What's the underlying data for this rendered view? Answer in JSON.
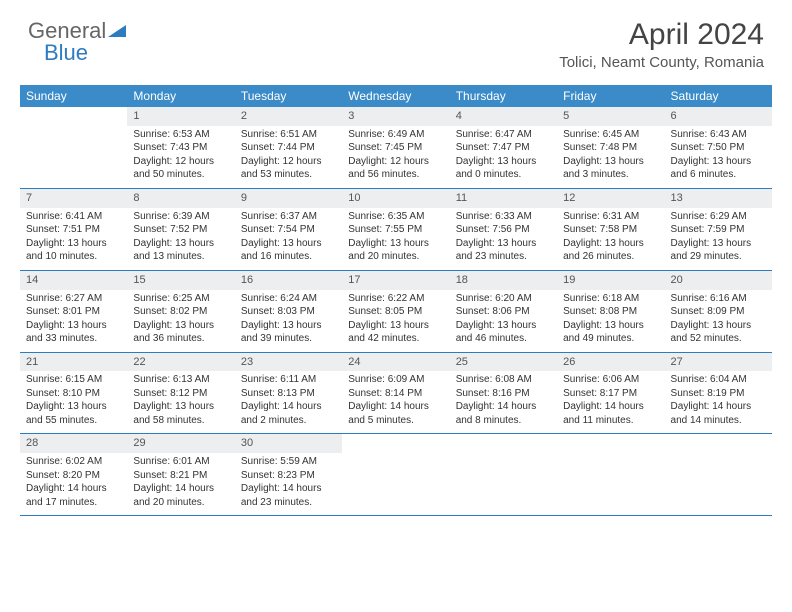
{
  "brand": {
    "part1": "General",
    "part2": "Blue"
  },
  "title": "April 2024",
  "location": "Tolici, Neamt County, Romania",
  "weekday_headers": [
    "Sunday",
    "Monday",
    "Tuesday",
    "Wednesday",
    "Thursday",
    "Friday",
    "Saturday"
  ],
  "header_bg": "#3b8bc9",
  "daynum_bg": "#eceeef",
  "rule_color": "#2e7cc0",
  "weeks": [
    {
      "nums": [
        "",
        "1",
        "2",
        "3",
        "4",
        "5",
        "6"
      ],
      "cells": [
        {
          "sr": "",
          "ss": "",
          "dl1": "",
          "dl2": ""
        },
        {
          "sr": "Sunrise: 6:53 AM",
          "ss": "Sunset: 7:43 PM",
          "dl1": "Daylight: 12 hours",
          "dl2": "and 50 minutes."
        },
        {
          "sr": "Sunrise: 6:51 AM",
          "ss": "Sunset: 7:44 PM",
          "dl1": "Daylight: 12 hours",
          "dl2": "and 53 minutes."
        },
        {
          "sr": "Sunrise: 6:49 AM",
          "ss": "Sunset: 7:45 PM",
          "dl1": "Daylight: 12 hours",
          "dl2": "and 56 minutes."
        },
        {
          "sr": "Sunrise: 6:47 AM",
          "ss": "Sunset: 7:47 PM",
          "dl1": "Daylight: 13 hours",
          "dl2": "and 0 minutes."
        },
        {
          "sr": "Sunrise: 6:45 AM",
          "ss": "Sunset: 7:48 PM",
          "dl1": "Daylight: 13 hours",
          "dl2": "and 3 minutes."
        },
        {
          "sr": "Sunrise: 6:43 AM",
          "ss": "Sunset: 7:50 PM",
          "dl1": "Daylight: 13 hours",
          "dl2": "and 6 minutes."
        }
      ]
    },
    {
      "nums": [
        "7",
        "8",
        "9",
        "10",
        "11",
        "12",
        "13"
      ],
      "cells": [
        {
          "sr": "Sunrise: 6:41 AM",
          "ss": "Sunset: 7:51 PM",
          "dl1": "Daylight: 13 hours",
          "dl2": "and 10 minutes."
        },
        {
          "sr": "Sunrise: 6:39 AM",
          "ss": "Sunset: 7:52 PM",
          "dl1": "Daylight: 13 hours",
          "dl2": "and 13 minutes."
        },
        {
          "sr": "Sunrise: 6:37 AM",
          "ss": "Sunset: 7:54 PM",
          "dl1": "Daylight: 13 hours",
          "dl2": "and 16 minutes."
        },
        {
          "sr": "Sunrise: 6:35 AM",
          "ss": "Sunset: 7:55 PM",
          "dl1": "Daylight: 13 hours",
          "dl2": "and 20 minutes."
        },
        {
          "sr": "Sunrise: 6:33 AM",
          "ss": "Sunset: 7:56 PM",
          "dl1": "Daylight: 13 hours",
          "dl2": "and 23 minutes."
        },
        {
          "sr": "Sunrise: 6:31 AM",
          "ss": "Sunset: 7:58 PM",
          "dl1": "Daylight: 13 hours",
          "dl2": "and 26 minutes."
        },
        {
          "sr": "Sunrise: 6:29 AM",
          "ss": "Sunset: 7:59 PM",
          "dl1": "Daylight: 13 hours",
          "dl2": "and 29 minutes."
        }
      ]
    },
    {
      "nums": [
        "14",
        "15",
        "16",
        "17",
        "18",
        "19",
        "20"
      ],
      "cells": [
        {
          "sr": "Sunrise: 6:27 AM",
          "ss": "Sunset: 8:01 PM",
          "dl1": "Daylight: 13 hours",
          "dl2": "and 33 minutes."
        },
        {
          "sr": "Sunrise: 6:25 AM",
          "ss": "Sunset: 8:02 PM",
          "dl1": "Daylight: 13 hours",
          "dl2": "and 36 minutes."
        },
        {
          "sr": "Sunrise: 6:24 AM",
          "ss": "Sunset: 8:03 PM",
          "dl1": "Daylight: 13 hours",
          "dl2": "and 39 minutes."
        },
        {
          "sr": "Sunrise: 6:22 AM",
          "ss": "Sunset: 8:05 PM",
          "dl1": "Daylight: 13 hours",
          "dl2": "and 42 minutes."
        },
        {
          "sr": "Sunrise: 6:20 AM",
          "ss": "Sunset: 8:06 PM",
          "dl1": "Daylight: 13 hours",
          "dl2": "and 46 minutes."
        },
        {
          "sr": "Sunrise: 6:18 AM",
          "ss": "Sunset: 8:08 PM",
          "dl1": "Daylight: 13 hours",
          "dl2": "and 49 minutes."
        },
        {
          "sr": "Sunrise: 6:16 AM",
          "ss": "Sunset: 8:09 PM",
          "dl1": "Daylight: 13 hours",
          "dl2": "and 52 minutes."
        }
      ]
    },
    {
      "nums": [
        "21",
        "22",
        "23",
        "24",
        "25",
        "26",
        "27"
      ],
      "cells": [
        {
          "sr": "Sunrise: 6:15 AM",
          "ss": "Sunset: 8:10 PM",
          "dl1": "Daylight: 13 hours",
          "dl2": "and 55 minutes."
        },
        {
          "sr": "Sunrise: 6:13 AM",
          "ss": "Sunset: 8:12 PM",
          "dl1": "Daylight: 13 hours",
          "dl2": "and 58 minutes."
        },
        {
          "sr": "Sunrise: 6:11 AM",
          "ss": "Sunset: 8:13 PM",
          "dl1": "Daylight: 14 hours",
          "dl2": "and 2 minutes."
        },
        {
          "sr": "Sunrise: 6:09 AM",
          "ss": "Sunset: 8:14 PM",
          "dl1": "Daylight: 14 hours",
          "dl2": "and 5 minutes."
        },
        {
          "sr": "Sunrise: 6:08 AM",
          "ss": "Sunset: 8:16 PM",
          "dl1": "Daylight: 14 hours",
          "dl2": "and 8 minutes."
        },
        {
          "sr": "Sunrise: 6:06 AM",
          "ss": "Sunset: 8:17 PM",
          "dl1": "Daylight: 14 hours",
          "dl2": "and 11 minutes."
        },
        {
          "sr": "Sunrise: 6:04 AM",
          "ss": "Sunset: 8:19 PM",
          "dl1": "Daylight: 14 hours",
          "dl2": "and 14 minutes."
        }
      ]
    },
    {
      "nums": [
        "28",
        "29",
        "30",
        "",
        "",
        "",
        ""
      ],
      "cells": [
        {
          "sr": "Sunrise: 6:02 AM",
          "ss": "Sunset: 8:20 PM",
          "dl1": "Daylight: 14 hours",
          "dl2": "and 17 minutes."
        },
        {
          "sr": "Sunrise: 6:01 AM",
          "ss": "Sunset: 8:21 PM",
          "dl1": "Daylight: 14 hours",
          "dl2": "and 20 minutes."
        },
        {
          "sr": "Sunrise: 5:59 AM",
          "ss": "Sunset: 8:23 PM",
          "dl1": "Daylight: 14 hours",
          "dl2": "and 23 minutes."
        },
        {
          "sr": "",
          "ss": "",
          "dl1": "",
          "dl2": ""
        },
        {
          "sr": "",
          "ss": "",
          "dl1": "",
          "dl2": ""
        },
        {
          "sr": "",
          "ss": "",
          "dl1": "",
          "dl2": ""
        },
        {
          "sr": "",
          "ss": "",
          "dl1": "",
          "dl2": ""
        }
      ]
    }
  ]
}
